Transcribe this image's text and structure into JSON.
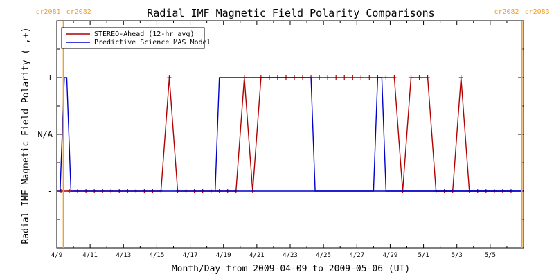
{
  "chart_data": {
    "type": "line",
    "title": "Radial IMF Magnetic Field Polarity Comparisons",
    "xlabel": "Month/Day from 2009-04-09 to 2009-05-06 (UT)",
    "ylabel": "Radial IMF Magnetic Field Polarity (-,+)",
    "x_start_date": "2009-04-09",
    "xlim": [
      0,
      28
    ],
    "ylim": [
      -2,
      2
    ],
    "x_ticks": [
      {
        "x": 0,
        "label": "4/9"
      },
      {
        "x": 2,
        "label": "4/11"
      },
      {
        "x": 4,
        "label": "4/13"
      },
      {
        "x": 6,
        "label": "4/15"
      },
      {
        "x": 8,
        "label": "4/17"
      },
      {
        "x": 10,
        "label": "4/19"
      },
      {
        "x": 12,
        "label": "4/21"
      },
      {
        "x": 14,
        "label": "4/23"
      },
      {
        "x": 16,
        "label": "4/25"
      },
      {
        "x": 18,
        "label": "4/27"
      },
      {
        "x": 20,
        "label": "4/29"
      },
      {
        "x": 22,
        "label": "5/1"
      },
      {
        "x": 24,
        "label": "5/3"
      },
      {
        "x": 26,
        "label": "5/5"
      }
    ],
    "y_ticks": [
      {
        "y": 1,
        "label": "+"
      },
      {
        "y": 0,
        "label": "N/A"
      },
      {
        "y": -1,
        "label": "-"
      }
    ],
    "carrington_markers": [
      {
        "x": 0.4,
        "left_label": "cr2081",
        "right_label": "cr2082"
      },
      {
        "x": 27.9,
        "left_label": "cr2082",
        "right_label": "cr2083"
      }
    ],
    "legend_position": "top-left",
    "series": [
      {
        "name": "STEREO-Ahead (12-hr avg)",
        "color": "#b00000",
        "markers": true,
        "x": [
          0.25,
          0.75,
          1.25,
          1.75,
          2.25,
          2.75,
          3.25,
          3.75,
          4.25,
          4.75,
          5.25,
          5.75,
          6.25,
          6.75,
          7.25,
          7.75,
          8.25,
          8.75,
          9.25,
          9.75,
          10.25,
          10.75,
          11.25,
          11.75,
          12.25,
          12.75,
          13.25,
          13.75,
          14.25,
          14.75,
          15.25,
          15.75,
          16.25,
          16.75,
          17.25,
          17.75,
          18.25,
          18.75,
          19.25,
          19.75,
          20.25,
          20.75,
          21.25,
          21.75,
          22.25,
          22.75,
          23.25,
          23.75,
          24.25,
          24.75,
          25.25,
          25.75,
          26.25,
          26.75,
          27.25
        ],
        "y": [
          -1,
          -1,
          -1,
          -1,
          -1,
          -1,
          -1,
          -1,
          -1,
          -1,
          -1,
          -1,
          -1,
          1,
          -1,
          -1,
          -1,
          -1,
          -1,
          -1,
          -1,
          -1,
          1,
          -1,
          1,
          1,
          1,
          1,
          1,
          1,
          1,
          1,
          1,
          1,
          1,
          1,
          1,
          1,
          1,
          1,
          1,
          -1,
          1,
          1,
          1,
          -1,
          -1,
          -1,
          1,
          -1,
          -1,
          -1,
          -1,
          -1,
          -1
        ]
      },
      {
        "name": "Predictive Science MAS Model",
        "color": "#0000cc",
        "markers": false,
        "x": [
          0,
          0.2,
          0.45,
          0.6,
          0.85,
          28
        ],
        "y": [
          -1,
          -1,
          1,
          1,
          -1,
          -1
        ],
        "x2": [
          9.5,
          9.75,
          15.25,
          15.5,
          19,
          19.25,
          19.5,
          19.75,
          28
        ],
        "y2": [
          -1,
          1,
          1,
          -1,
          -1,
          1,
          1,
          -1,
          -1
        ]
      }
    ]
  }
}
